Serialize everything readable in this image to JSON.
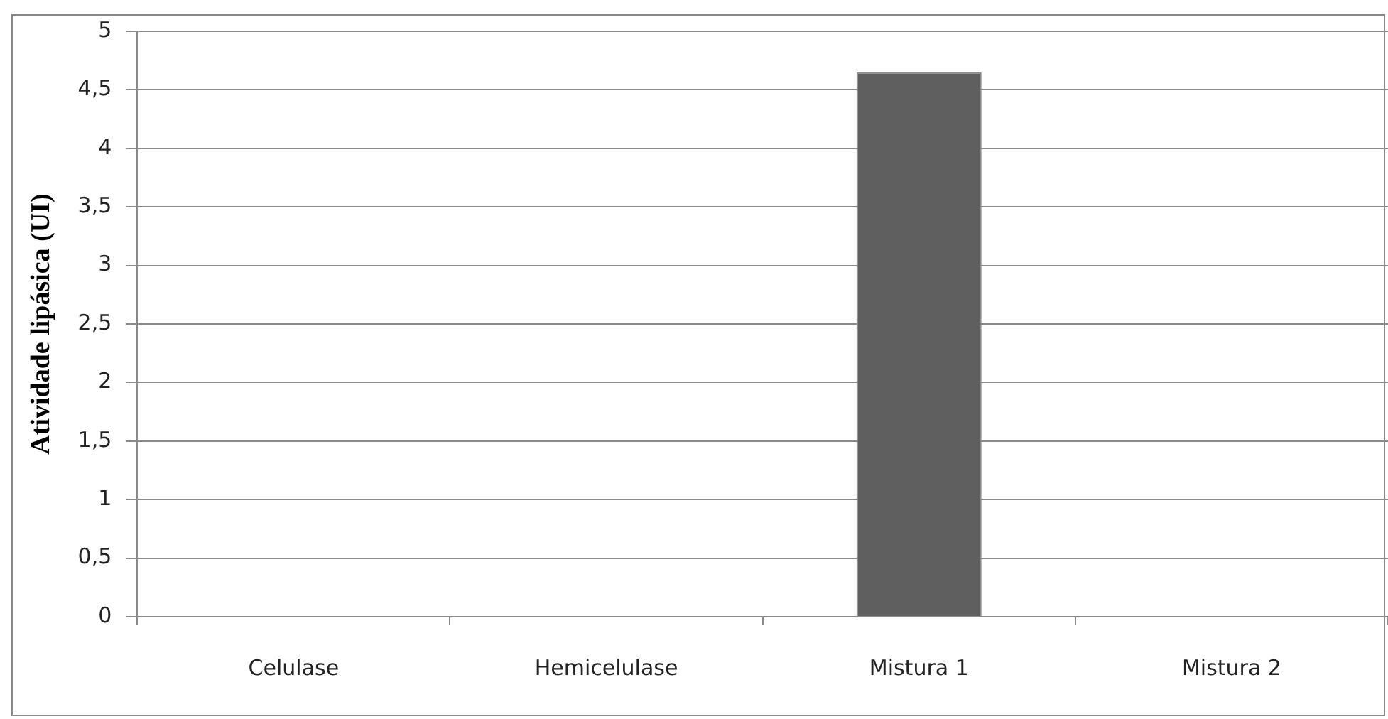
{
  "chart_data": {
    "type": "bar",
    "ylabel": "Atividade lipásica (UI)",
    "categories": [
      "Celulase",
      "Hemicelulase",
      "Mistura 1",
      "Mistura 2"
    ],
    "values": [
      0,
      0,
      4.65,
      0
    ],
    "color": "#5f5f5f",
    "ylim": [
      0,
      5
    ],
    "yticks": [
      0,
      {
        "value": 0.5,
        "label": "0,5"
      },
      1,
      {
        "value": 1.5,
        "label": "1,5"
      },
      2,
      {
        "value": 2.5,
        "label": "2,5"
      },
      3,
      {
        "value": 3.5,
        "label": "3,5"
      },
      4,
      {
        "value": 4.5,
        "label": "4,5"
      },
      5
    ],
    "grid": "y",
    "legend": false
  }
}
